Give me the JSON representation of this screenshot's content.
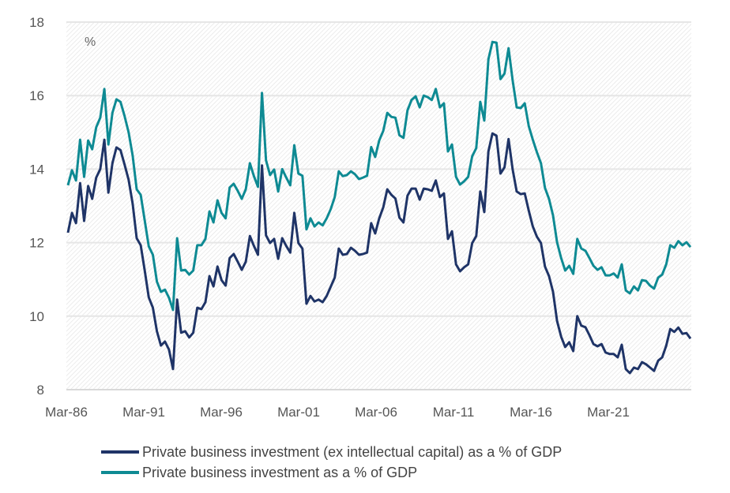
{
  "chart_data": {
    "type": "line",
    "title": "",
    "unit_label": "%",
    "xlabel": "",
    "ylabel": "%",
    "frequency": "quarterly",
    "start": "Mar-86",
    "x_ticks": [
      "Mar-86",
      "Mar-91",
      "Mar-96",
      "Mar-01",
      "Mar-06",
      "Mar-11",
      "Mar-16",
      "Mar-21"
    ],
    "y_ticks": [
      8,
      10,
      12,
      14,
      16,
      18
    ],
    "ylim": [
      8,
      18
    ],
    "grid": true,
    "legend_position": "bottom",
    "series": [
      {
        "name": "Private business investment (ex intellectual capital) as a % of GDP",
        "color": "#1f3467",
        "values": [
          12.27,
          12.81,
          12.53,
          13.62,
          12.59,
          13.54,
          13.19,
          13.77,
          14.0,
          14.8,
          13.36,
          14.16,
          14.59,
          14.52,
          14.13,
          13.71,
          13.06,
          12.12,
          11.93,
          11.24,
          10.51,
          10.23,
          9.59,
          9.2,
          9.31,
          9.09,
          8.56,
          10.45,
          9.55,
          9.59,
          9.42,
          9.55,
          10.23,
          10.19,
          10.38,
          11.09,
          10.81,
          11.35,
          10.98,
          10.83,
          11.58,
          11.69,
          11.48,
          11.26,
          11.48,
          12.18,
          11.91,
          11.67,
          14.1,
          12.2,
          11.99,
          12.1,
          11.56,
          12.12,
          11.91,
          11.73,
          12.81,
          11.99,
          11.84,
          10.34,
          10.55,
          10.4,
          10.45,
          10.38,
          10.55,
          10.8,
          11.05,
          11.84,
          11.67,
          11.69,
          11.86,
          11.78,
          11.67,
          11.69,
          11.73,
          12.53,
          12.25,
          12.66,
          12.96,
          13.45,
          13.3,
          13.2,
          12.68,
          12.55,
          13.28,
          13.47,
          13.47,
          13.17,
          13.47,
          13.45,
          13.41,
          13.69,
          13.24,
          13.34,
          12.1,
          12.31,
          11.41,
          11.22,
          11.33,
          11.41,
          11.99,
          12.18,
          13.39,
          12.83,
          14.48,
          14.97,
          14.91,
          13.88,
          14.05,
          14.82,
          13.99,
          13.39,
          13.32,
          13.34,
          12.87,
          12.44,
          12.16,
          11.99,
          11.35,
          11.09,
          10.66,
          9.87,
          9.44,
          9.16,
          9.29,
          9.05,
          10.0,
          9.74,
          9.7,
          9.48,
          9.24,
          9.18,
          9.24,
          9.01,
          8.97,
          8.97,
          8.88,
          9.22,
          8.56,
          8.45,
          8.6,
          8.56,
          8.75,
          8.69,
          8.6,
          8.51,
          8.79,
          8.88,
          9.2,
          9.65,
          9.57,
          9.69,
          9.52,
          9.54,
          9.39
        ]
      },
      {
        "name": "Private business investment as a % of GDP",
        "color": "#0e8a93",
        "values": [
          13.56,
          13.97,
          13.69,
          14.8,
          13.79,
          14.78,
          14.54,
          15.14,
          15.4,
          16.18,
          14.67,
          15.53,
          15.9,
          15.83,
          15.45,
          15.0,
          14.37,
          13.45,
          13.3,
          12.6,
          11.9,
          11.67,
          10.94,
          10.66,
          10.72,
          10.5,
          10.17,
          12.12,
          11.24,
          11.26,
          11.13,
          11.24,
          11.93,
          11.93,
          12.1,
          12.85,
          12.55,
          13.15,
          12.81,
          12.66,
          13.5,
          13.6,
          13.41,
          13.19,
          13.45,
          14.16,
          13.81,
          13.52,
          16.07,
          14.24,
          13.84,
          13.99,
          13.39,
          14.0,
          13.77,
          13.56,
          14.65,
          13.88,
          13.82,
          12.36,
          12.66,
          12.44,
          12.55,
          12.47,
          12.66,
          12.91,
          13.24,
          13.94,
          13.81,
          13.84,
          13.94,
          13.86,
          13.73,
          13.77,
          13.82,
          14.6,
          14.33,
          14.78,
          15.04,
          15.53,
          15.42,
          15.4,
          14.92,
          14.85,
          15.6,
          15.88,
          15.98,
          15.68,
          16.0,
          15.96,
          15.88,
          16.18,
          15.68,
          15.79,
          14.48,
          14.67,
          13.79,
          13.58,
          13.67,
          13.79,
          14.35,
          14.57,
          15.83,
          15.32,
          16.99,
          17.46,
          17.44,
          16.45,
          16.6,
          17.29,
          16.41,
          15.68,
          15.66,
          15.79,
          15.17,
          14.8,
          14.46,
          14.16,
          13.49,
          13.19,
          12.74,
          12.01,
          11.58,
          11.24,
          11.37,
          11.15,
          12.1,
          11.84,
          11.78,
          11.58,
          11.37,
          11.26,
          11.33,
          11.11,
          11.11,
          11.16,
          11.05,
          11.41,
          10.7,
          10.62,
          10.81,
          10.7,
          10.98,
          10.96,
          10.83,
          10.75,
          11.05,
          11.13,
          11.41,
          11.93,
          11.86,
          12.04,
          11.93,
          12.01,
          11.88
        ]
      }
    ]
  }
}
